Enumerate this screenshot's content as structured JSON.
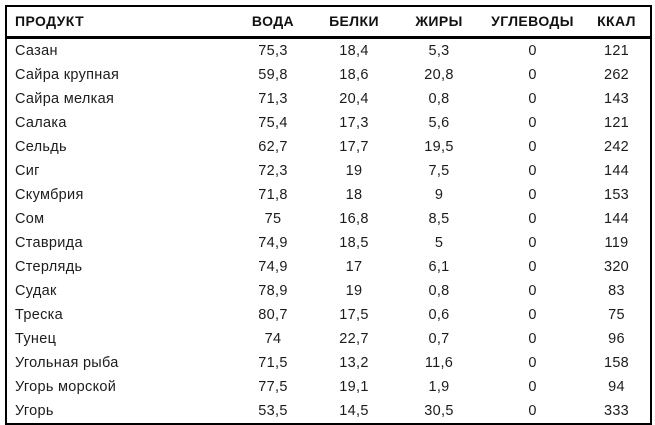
{
  "colors": {
    "background": "#ffffff",
    "border": "#000000",
    "text": "#1c1c1c"
  },
  "table": {
    "columns": [
      {
        "key": "product",
        "label": "ПРОДУКТ"
      },
      {
        "key": "water",
        "label": "ВОДА"
      },
      {
        "key": "protein",
        "label": "БЕЛКИ"
      },
      {
        "key": "fat",
        "label": "ЖИРЫ"
      },
      {
        "key": "carbs",
        "label": "УГЛЕВОДЫ"
      },
      {
        "key": "kcal",
        "label": "ККАЛ"
      }
    ],
    "rows": [
      [
        "Сазан",
        "75,3",
        "18,4",
        "5,3",
        "0",
        "121"
      ],
      [
        "Сайра крупная",
        "59,8",
        "18,6",
        "20,8",
        "0",
        "262"
      ],
      [
        "Сайра мелкая",
        "71,3",
        "20,4",
        "0,8",
        "0",
        "143"
      ],
      [
        "Салака",
        "75,4",
        "17,3",
        "5,6",
        "0",
        "121"
      ],
      [
        "Сельдь",
        "62,7",
        "17,7",
        "19,5",
        "0",
        "242"
      ],
      [
        "Сиг",
        "72,3",
        "19",
        "7,5",
        "0",
        "144"
      ],
      [
        "Скумбрия",
        "71,8",
        "18",
        "9",
        "0",
        "153"
      ],
      [
        "Сом",
        "75",
        "16,8",
        "8,5",
        "0",
        "144"
      ],
      [
        "Ставрида",
        "74,9",
        "18,5",
        "5",
        "0",
        "119"
      ],
      [
        "Стерлядь",
        "74,9",
        "17",
        "6,1",
        "0",
        "320"
      ],
      [
        "Судак",
        "78,9",
        "19",
        "0,8",
        "0",
        "83"
      ],
      [
        "Треска",
        "80,7",
        "17,5",
        "0,6",
        "0",
        "75"
      ],
      [
        "Тунец",
        "74",
        "22,7",
        "0,7",
        "0",
        "96"
      ],
      [
        "Угольная рыба",
        "71,5",
        "13,2",
        "11,6",
        "0",
        "158"
      ],
      [
        "Угорь морской",
        "77,5",
        "19,1",
        "1,9",
        "0",
        "94"
      ],
      [
        "Угорь",
        "53,5",
        "14,5",
        "30,5",
        "0",
        "333"
      ]
    ]
  }
}
